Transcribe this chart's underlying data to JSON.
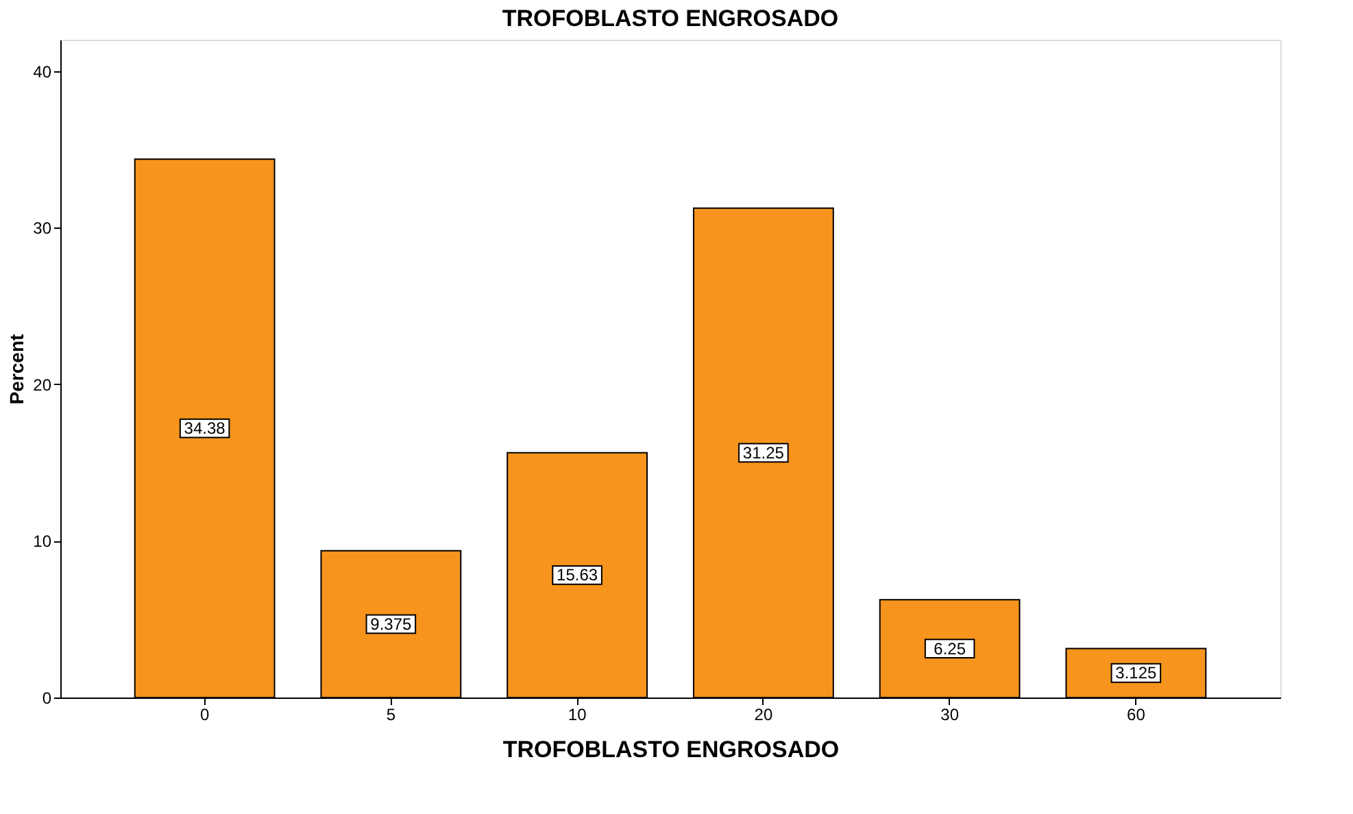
{
  "chart_data": {
    "type": "bar",
    "title": "TROFOBLASTO ENGROSADO",
    "xlabel": "TROFOBLASTO ENGROSADO",
    "ylabel": "Percent",
    "categories": [
      "0",
      "5",
      "10",
      "20",
      "30",
      "60"
    ],
    "values": [
      34.38,
      9.375,
      15.63,
      31.25,
      6.25,
      3.125
    ],
    "color": "#f7941d",
    "ylim": [
      0,
      42
    ],
    "yticks": [
      0,
      10,
      20,
      30,
      40
    ],
    "grid": false,
    "data_labels": true
  }
}
